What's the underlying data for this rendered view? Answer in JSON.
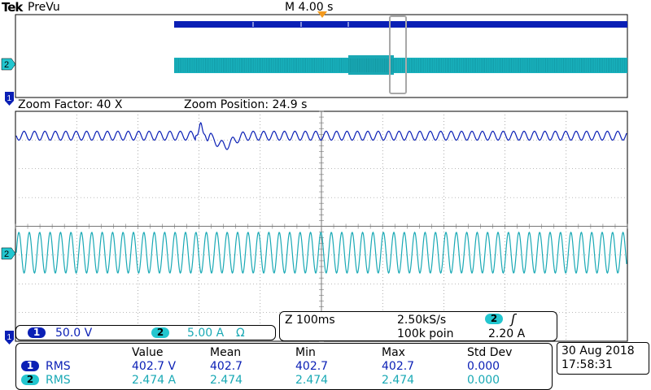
{
  "header": {
    "brand": "Tek",
    "mode": "PreVu",
    "timebase": "M 4.00 s"
  },
  "zoom": {
    "factor_label": "Zoom Factor: 40 X",
    "position_label": "Zoom Position: 24.9 s"
  },
  "channel_markers": {
    "ch1": "1",
    "ch2": "2"
  },
  "channels": [
    {
      "number": "1",
      "scale": "50.0 V",
      "color": "#0a1fb5"
    },
    {
      "number": "2",
      "scale": "5.00 A",
      "extra": "Ω",
      "color": "#19a9b5"
    }
  ],
  "acquisition": {
    "zoom_time": "Z 100ms",
    "sample_rate": "2.50kS/s",
    "record_length": "100k poin",
    "trigger_channel": "2",
    "trigger_slope_icon": "rising-edge-icon",
    "trigger_slope_symbol": "ʃ",
    "trigger_level": "2.20 A"
  },
  "measurements": {
    "headers": [
      "Value",
      "Mean",
      "Min",
      "Max",
      "Std Dev"
    ],
    "rows": [
      {
        "channel": "1",
        "name": "RMS",
        "value": "402.7 V",
        "mean": "402.7",
        "min": "402.7",
        "max": "402.7",
        "std": "0.000"
      },
      {
        "channel": "2",
        "name": "RMS",
        "value": "2.474 A",
        "mean": "2.474",
        "min": "2.474",
        "max": "2.474",
        "std": "0.000"
      }
    ]
  },
  "datetime": {
    "date": "30 Aug 2018",
    "time": "17:58:31"
  },
  "colors": {
    "ch1": "#0a1fb5",
    "ch2": "#19a9b5",
    "trigger_marker": "#f39a1e",
    "zoom_box": "#a8a8a8",
    "grid": "#666666"
  }
}
